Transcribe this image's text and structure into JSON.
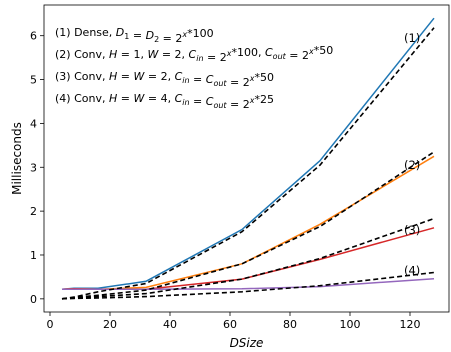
{
  "chart_data": {
    "type": "line",
    "xlabel": "DSize",
    "ylabel": "Milliseconds",
    "xlim": [
      -2,
      133
    ],
    "ylim": [
      -0.3,
      6.7
    ],
    "xticks": [
      0,
      20,
      40,
      60,
      80,
      100,
      120
    ],
    "yticks": [
      0,
      1,
      2,
      3,
      4,
      5,
      6
    ],
    "x": [
      4,
      8,
      16,
      32,
      64,
      90,
      128
    ],
    "legend_lines": [
      {
        "prefix": "(1) Dense, ",
        "math": "D1 = D2 = 2^x * 100"
      },
      {
        "prefix": "(2) Conv, ",
        "math": "H = 1, W = 2, Cin = 2^x * 100, Cout = 2^x * 50"
      },
      {
        "prefix": "(3) Conv, ",
        "math": "H = W = 2, Cin = Cout = 2^x * 50"
      },
      {
        "prefix": "(4) Conv, ",
        "math": "H = W = 4, Cin = Cout = 2^x * 25"
      }
    ],
    "series": [
      {
        "label": "(1)",
        "color": "#1f77b4",
        "values": [
          0.22,
          0.24,
          0.24,
          0.4,
          1.58,
          3.15,
          6.4
        ]
      },
      {
        "label": "(2)",
        "color": "#ff7f0e",
        "values": [
          0.22,
          0.23,
          0.22,
          0.26,
          0.8,
          1.7,
          3.25
        ]
      },
      {
        "label": "(3)",
        "color": "#d62728",
        "values": [
          0.22,
          0.23,
          0.22,
          0.22,
          0.45,
          0.9,
          1.62
        ]
      },
      {
        "label": "(4)",
        "color": "#9467bd",
        "values": [
          0.22,
          0.22,
          0.22,
          0.22,
          0.23,
          0.28,
          0.46
        ]
      },
      {
        "label": "(1)",
        "color": "#000000",
        "style": "dashed",
        "values": [
          0.0,
          0.04,
          0.16,
          0.35,
          1.53,
          3.05,
          6.18
        ]
      },
      {
        "label": "(2)",
        "color": "#000000",
        "style": "dashed",
        "values": [
          0.0,
          0.03,
          0.08,
          0.2,
          0.8,
          1.65,
          3.35
        ]
      },
      {
        "label": "(3)",
        "color": "#000000",
        "style": "dashed",
        "values": [
          0.0,
          0.02,
          0.05,
          0.12,
          0.45,
          0.92,
          1.83
        ]
      },
      {
        "label": "(4)",
        "color": "#000000",
        "style": "dashed",
        "values": [
          0.0,
          0.01,
          0.02,
          0.05,
          0.16,
          0.3,
          0.6
        ]
      }
    ],
    "curve_labels": [
      {
        "text": "(1)",
        "x": 118,
        "y": 5.95
      },
      {
        "text": "(2)",
        "x": 118,
        "y": 3.05
      },
      {
        "text": "(3)",
        "x": 118,
        "y": 1.57
      },
      {
        "text": "(4)",
        "x": 118,
        "y": 0.65
      }
    ]
  }
}
